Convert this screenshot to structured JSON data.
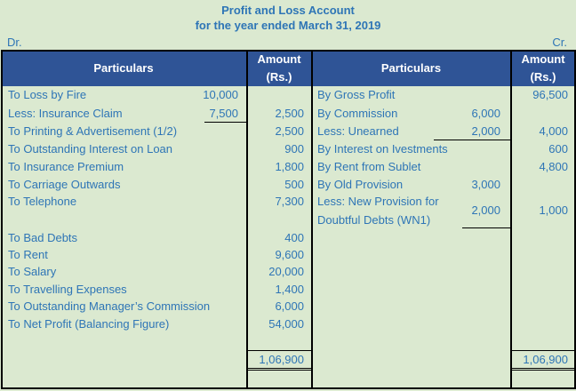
{
  "title": "Profit and Loss Account",
  "subtitle": "for the year ended March 31, 2019",
  "dr": "Dr.",
  "cr": "Cr.",
  "headers": {
    "particulars_left": "Particulars",
    "amount_left": "Amount (Rs.)",
    "particulars_right": "Particulars",
    "amount_right": "Amount (Rs.)"
  },
  "debit": [
    {
      "label": "To Loss by Fire",
      "sub": "10,000",
      "amount": ""
    },
    {
      "label": "Less: Insurance Claim",
      "sub": "7,500",
      "amount": "2,500"
    },
    {
      "label": "To Printing & Advertisement (1/2)",
      "sub": "",
      "amount": "2,500"
    },
    {
      "label": "To Outstanding Interest on Loan",
      "sub": "",
      "amount": "900"
    },
    {
      "label": "To Insurance Premium",
      "sub": "",
      "amount": "1,800"
    },
    {
      "label": "To Carriage Outwards",
      "sub": "",
      "amount": "500"
    },
    {
      "label": "To Telephone",
      "sub": "",
      "amount": "7,300"
    },
    {
      "label": "To Bad Debts",
      "sub": "",
      "amount": "400"
    },
    {
      "label": "To Rent",
      "sub": "",
      "amount": "9,600"
    },
    {
      "label": "To Salary",
      "sub": "",
      "amount": "20,000"
    },
    {
      "label": "To Travelling Expenses",
      "sub": "",
      "amount": "1,400"
    },
    {
      "label": "To Outstanding Manager’s Commission",
      "sub": "",
      "amount": "6,000"
    },
    {
      "label": "To Net Profit (Balancing Figure)",
      "sub": "",
      "amount": "54,000"
    }
  ],
  "credit": [
    {
      "label": "By Gross Profit",
      "sub": "",
      "amount": "96,500"
    },
    {
      "label": "By Commission",
      "sub": "6,000",
      "amount": ""
    },
    {
      "label": "Less: Unearned",
      "sub": "2,000",
      "amount": "4,000"
    },
    {
      "label": "By Interest on Ivestments",
      "sub": "",
      "amount": "600"
    },
    {
      "label": "By Rent from Sublet",
      "sub": "",
      "amount": "4,800"
    },
    {
      "label": "By Old Provision",
      "sub": "3,000",
      "amount": ""
    },
    {
      "label": "Less: New Provision for",
      "sub": "2,000",
      "amount": "1,000"
    },
    {
      "label": "Doubtful Debts (WN1)",
      "sub": "",
      "amount": ""
    }
  ],
  "totals": {
    "left": "1,06,900",
    "right": "1,06,900"
  }
}
